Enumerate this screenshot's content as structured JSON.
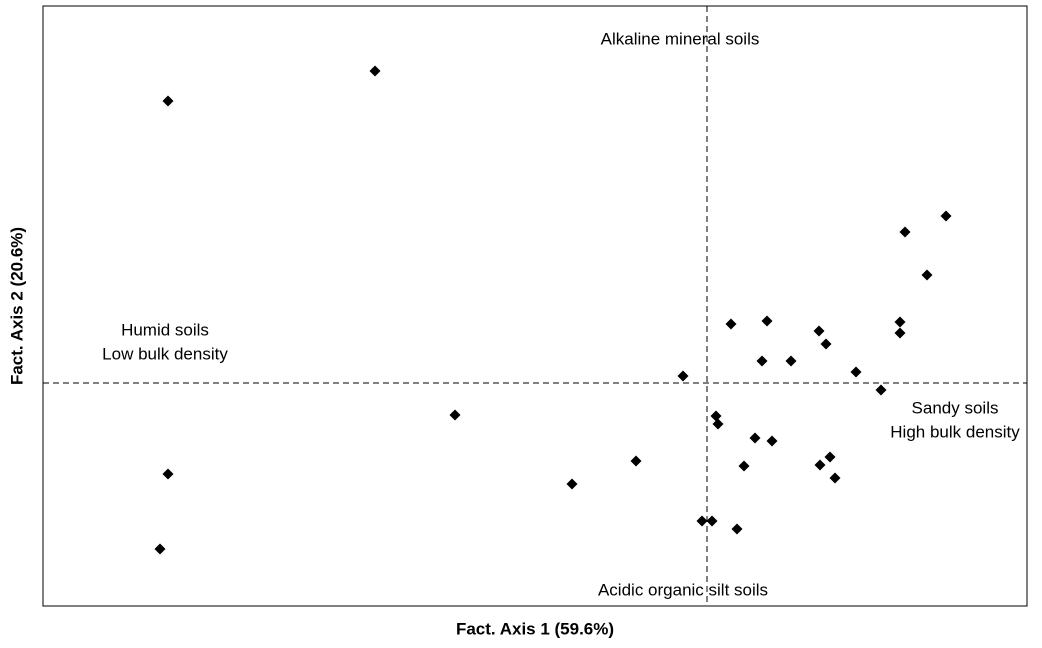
{
  "chart_data": {
    "type": "scatter",
    "x_label": "Fact. Axis 1 (59.6%)",
    "y_label": "Fact. Axis 2 (20.6%)",
    "xlim": [
      -6.64,
      3.2
    ],
    "ylim": [
      -2.23,
      3.77
    ],
    "reference_lines": {
      "x": 0,
      "y": 0
    },
    "color": "#000000",
    "annotations": [
      [
        "Alkaline mineral soils"
      ],
      [
        "Acidic organic silt soils"
      ],
      [
        "Humid soils",
        "Low bulk density"
      ],
      [
        "Sandy soils",
        "High bulk density"
      ]
    ],
    "x": [
      -5.39,
      -3.32,
      2.39,
      1.98,
      2.2,
      0.24,
      0.6,
      1.12,
      1.93,
      1.93,
      1.19,
      0.55,
      0.84,
      1.49,
      -0.24,
      1.74,
      -2.52,
      0.09,
      0.11,
      0.48,
      0.65,
      -0.71,
      0.37,
      1.13,
      1.23,
      1.28,
      -5.39,
      -1.35,
      -0.05,
      0.05,
      0.3,
      -5.47
    ],
    "y": [
      2.82,
      3.12,
      1.67,
      1.51,
      1.08,
      0.59,
      0.62,
      0.52,
      0.61,
      0.5,
      0.39,
      0.22,
      0.22,
      0.11,
      0.07,
      -0.07,
      -0.32,
      -0.33,
      -0.41,
      -0.55,
      -0.58,
      -0.78,
      -0.83,
      -0.82,
      -0.74,
      -0.95,
      -0.91,
      -1.01,
      -1.38,
      -1.38,
      -1.46,
      -1.66
    ]
  }
}
